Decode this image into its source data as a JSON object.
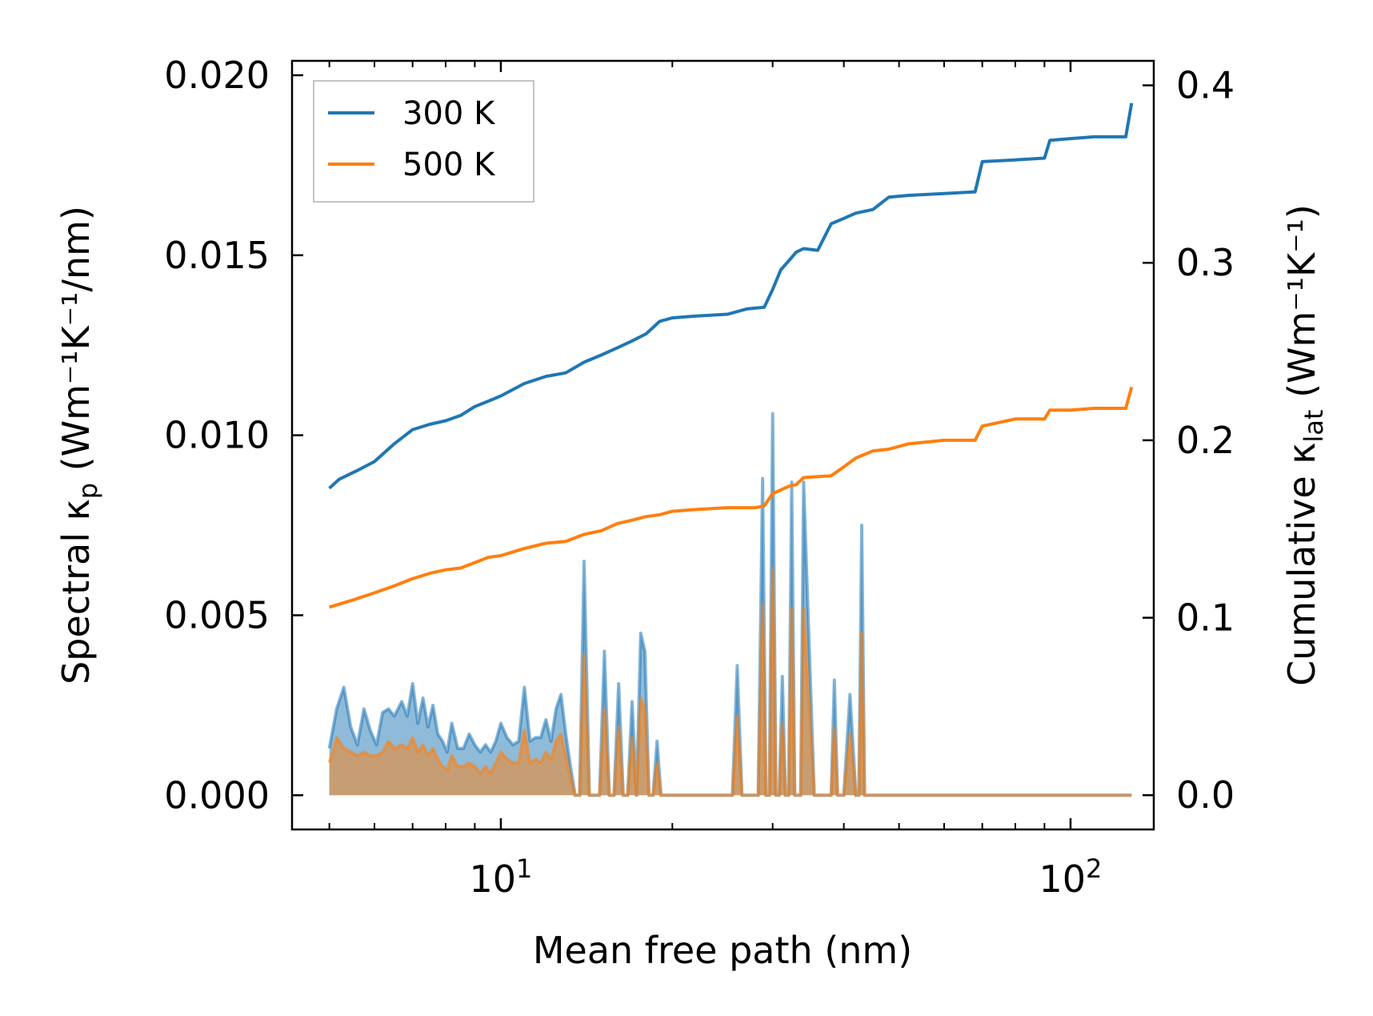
{
  "chart_data": {
    "type": "line",
    "xscale": "log",
    "xlabel": "Mean free path (nm)",
    "ylabel_left": {
      "base": "Spectral κ",
      "sub": "p",
      "unit": "(Wm⁻¹K⁻¹/nm)"
    },
    "ylabel_right": {
      "base": "Cumulative κ",
      "sub": "lat",
      "unit": "(Wm⁻¹K⁻¹)"
    },
    "xlim": [
      4.3,
      140
    ],
    "ylim_left": [
      -0.00095,
      0.0204
    ],
    "ylim_right": [
      -0.0193,
      0.4138
    ],
    "xticks": [
      {
        "value": 10,
        "base": "10",
        "exp": "1"
      },
      {
        "value": 100,
        "base": "10",
        "exp": "2"
      }
    ],
    "yticks_left": [
      {
        "value": 0.0,
        "label": "0.000"
      },
      {
        "value": 0.005,
        "label": "0.005"
      },
      {
        "value": 0.01,
        "label": "0.010"
      },
      {
        "value": 0.015,
        "label": "0.015"
      },
      {
        "value": 0.02,
        "label": "0.020"
      }
    ],
    "yticks_right": [
      {
        "value": 0.0,
        "label": "0.0"
      },
      {
        "value": 0.1,
        "label": "0.1"
      },
      {
        "value": 0.2,
        "label": "0.2"
      },
      {
        "value": 0.3,
        "label": "0.3"
      },
      {
        "value": 0.4,
        "label": "0.4"
      }
    ],
    "legend": {
      "position": "top-left",
      "entries": [
        "300 K",
        "500 K"
      ]
    },
    "colors": {
      "300 K": "#1f77b4",
      "500 K": "#ff7f0e"
    },
    "series": [
      {
        "name": "300 K",
        "axis": "right",
        "kind": "cumulative",
        "x": [
          5.0,
          5.2,
          5.6,
          6.0,
          6.5,
          7.0,
          7.5,
          8.0,
          8.5,
          9.0,
          9.5,
          10.0,
          11.0,
          12.0,
          13.0,
          14.0,
          15.0,
          16.0,
          17.0,
          18.0,
          19.0,
          20.0,
          22.0,
          25.0,
          27.0,
          29.0,
          30.0,
          31.0,
          32.0,
          33.0,
          34.0,
          36.0,
          38.0,
          40.0,
          42.0,
          45.0,
          48.0,
          52.0,
          60.0,
          68.0,
          70.0,
          80.0,
          90.0,
          92.0,
          100.0,
          110.0,
          125.0,
          128.0
        ],
        "y": [
          0.173,
          0.178,
          0.183,
          0.188,
          0.198,
          0.206,
          0.209,
          0.211,
          0.214,
          0.219,
          0.222,
          0.225,
          0.232,
          0.236,
          0.238,
          0.244,
          0.248,
          0.252,
          0.256,
          0.26,
          0.267,
          0.269,
          0.27,
          0.271,
          0.274,
          0.275,
          0.285,
          0.296,
          0.301,
          0.306,
          0.308,
          0.307,
          0.322,
          0.325,
          0.328,
          0.33,
          0.337,
          0.338,
          0.339,
          0.34,
          0.357,
          0.358,
          0.359,
          0.369,
          0.37,
          0.371,
          0.371,
          0.39
        ]
      },
      {
        "name": "500 K",
        "axis": "right",
        "kind": "cumulative",
        "x": [
          5.0,
          5.5,
          6.0,
          6.5,
          7.0,
          7.5,
          8.0,
          8.5,
          9.0,
          9.5,
          10.0,
          11.0,
          12.0,
          13.0,
          14.0,
          15.0,
          16.0,
          17.0,
          18.0,
          19.0,
          20.0,
          22.0,
          25.0,
          28.0,
          29.0,
          30.0,
          31.0,
          32.0,
          33.0,
          34.0,
          38.0,
          40.0,
          42.0,
          45.0,
          48.0,
          52.0,
          60.0,
          68.0,
          70.0,
          80.0,
          90.0,
          92.0,
          100.0,
          110.0,
          125.0,
          128.0
        ],
        "y": [
          0.106,
          0.11,
          0.114,
          0.118,
          0.122,
          0.125,
          0.127,
          0.128,
          0.131,
          0.134,
          0.135,
          0.139,
          0.142,
          0.143,
          0.147,
          0.149,
          0.153,
          0.155,
          0.157,
          0.158,
          0.16,
          0.161,
          0.162,
          0.162,
          0.163,
          0.17,
          0.172,
          0.174,
          0.175,
          0.179,
          0.18,
          0.185,
          0.19,
          0.194,
          0.195,
          0.198,
          0.2,
          0.2,
          0.208,
          0.212,
          0.212,
          0.217,
          0.217,
          0.218,
          0.218,
          0.23
        ]
      },
      {
        "name": "300 K",
        "axis": "left",
        "kind": "spectral",
        "x": [
          5.0,
          5.15,
          5.3,
          5.45,
          5.6,
          5.75,
          5.9,
          6.05,
          6.2,
          6.35,
          6.5,
          6.7,
          6.85,
          7.0,
          7.15,
          7.3,
          7.45,
          7.6,
          7.75,
          7.9,
          8.05,
          8.2,
          8.4,
          8.6,
          8.8,
          9.0,
          9.2,
          9.4,
          9.6,
          9.8,
          10.0,
          10.25,
          10.5,
          10.75,
          11.0,
          11.25,
          11.5,
          11.75,
          12.0,
          12.25,
          12.5,
          12.75,
          13.0,
          13.25,
          13.5,
          13.75,
          14.0,
          14.3,
          14.6,
          14.9,
          15.2,
          15.5,
          15.8,
          16.1,
          16.4,
          16.7,
          17.0,
          17.3,
          17.6,
          17.9,
          18.2,
          18.5,
          18.8,
          19.1,
          19.4,
          19.7,
          20.0,
          20.5,
          21.0,
          21.5,
          22.0,
          24.0,
          25.5,
          26.0,
          26.5,
          27.5,
          28.3,
          28.8,
          29.2,
          29.6,
          30.0,
          30.4,
          30.8,
          31.2,
          31.6,
          32.0,
          32.4,
          32.8,
          33.2,
          33.6,
          34.0,
          34.4,
          35.5,
          36.5,
          37.5,
          38.0,
          38.5,
          39.0,
          40.0,
          41.0,
          42.0,
          42.5,
          43.0,
          43.5,
          44.5,
          45.0,
          45.5,
          46.0,
          47.0,
          48.0,
          48.5,
          49.0,
          49.5,
          50.0,
          66.0,
          67.5,
          68.0,
          68.5,
          70.0,
          88.0,
          89.0,
          90.0,
          92.0,
          125.0,
          126.0,
          127.0,
          128.0
        ],
        "y": [
          0.0013,
          0.0024,
          0.003,
          0.0019,
          0.0014,
          0.0024,
          0.0018,
          0.0014,
          0.0023,
          0.0024,
          0.0022,
          0.0026,
          0.0022,
          0.0031,
          0.002,
          0.0027,
          0.0019,
          0.0025,
          0.0017,
          0.0015,
          0.0012,
          0.002,
          0.0013,
          0.0013,
          0.0017,
          0.0014,
          0.0012,
          0.0014,
          0.0012,
          0.0015,
          0.002,
          0.0016,
          0.0014,
          0.0015,
          0.003,
          0.0015,
          0.0016,
          0.0016,
          0.0021,
          0.0015,
          0.0024,
          0.0028,
          0.0017,
          0.0008,
          0.0,
          0.0,
          0.0065,
          0.0,
          0.0,
          0.0,
          0.004,
          0.0,
          0.0,
          0.0031,
          0.0,
          0.0,
          0.0026,
          0.0,
          0.0045,
          0.004,
          0.0,
          0.0,
          0.0015,
          0.0,
          0.0,
          0.0,
          0.0,
          0.0,
          0.0,
          0.0,
          0.0,
          0.0,
          0.0,
          0.0036,
          0.0,
          0.0,
          0.0,
          0.0088,
          0.0,
          0.0,
          0.0106,
          0.0,
          0.0,
          0.0033,
          0.0,
          0.0,
          0.0087,
          0.0,
          0.0,
          0.0,
          0.0087,
          0.0063,
          0.0,
          0.0,
          0.0,
          0.0,
          0.0032,
          0.0,
          0.0,
          0.0028,
          0.0,
          0.0,
          0.0075,
          0.0,
          0.0,
          0.0,
          0.0,
          0.0,
          0.0,
          0.0,
          0.0,
          0.0,
          0.0,
          0.0,
          0.0,
          0.0,
          0.0,
          0.0,
          0.0,
          0.0,
          0.0,
          0.0,
          0.0,
          0.0,
          0.0,
          0.0,
          0.0
        ]
      },
      {
        "name": "500 K",
        "axis": "left",
        "kind": "spectral",
        "x": [
          5.0,
          5.15,
          5.3,
          5.45,
          5.6,
          5.75,
          5.9,
          6.05,
          6.2,
          6.35,
          6.5,
          6.7,
          6.85,
          7.0,
          7.15,
          7.3,
          7.45,
          7.6,
          7.75,
          7.9,
          8.05,
          8.2,
          8.4,
          8.6,
          8.8,
          9.0,
          9.2,
          9.4,
          9.6,
          9.8,
          10.0,
          10.25,
          10.5,
          10.75,
          11.0,
          11.25,
          11.5,
          11.75,
          12.0,
          12.25,
          12.5,
          12.75,
          13.0,
          13.25,
          13.5,
          13.75,
          14.0,
          14.3,
          14.6,
          14.9,
          15.2,
          15.5,
          15.8,
          16.1,
          16.4,
          16.7,
          17.0,
          17.3,
          17.6,
          17.9,
          18.2,
          18.5,
          18.8,
          19.1,
          19.4,
          19.7,
          20.0,
          20.5,
          21.0,
          21.5,
          22.0,
          24.0,
          25.5,
          26.0,
          26.5,
          27.5,
          28.3,
          28.8,
          29.2,
          29.6,
          30.0,
          30.4,
          30.8,
          31.2,
          31.6,
          32.0,
          32.4,
          32.8,
          33.2,
          33.6,
          34.0,
          34.4,
          35.5,
          36.5,
          37.5,
          38.0,
          38.5,
          39.0,
          40.0,
          41.0,
          42.0,
          42.5,
          43.0,
          43.5,
          44.5,
          45.0,
          45.5,
          46.0,
          47.0,
          48.0,
          48.5,
          49.0,
          49.5,
          50.0,
          66.0,
          67.5,
          68.0,
          68.5,
          70.0,
          88.0,
          89.0,
          90.0,
          92.0,
          125.0,
          126.0,
          127.0,
          128.0
        ],
        "y": [
          0.0009,
          0.0016,
          0.0013,
          0.0012,
          0.0011,
          0.0012,
          0.0011,
          0.0011,
          0.0012,
          0.0015,
          0.0013,
          0.0014,
          0.0013,
          0.0016,
          0.0012,
          0.0014,
          0.0011,
          0.0013,
          0.001,
          0.0008,
          0.0007,
          0.0011,
          0.0008,
          0.0008,
          0.0009,
          0.0008,
          0.0006,
          0.0008,
          0.0006,
          0.0009,
          0.0012,
          0.001,
          0.0009,
          0.0009,
          0.0018,
          0.0009,
          0.001,
          0.0009,
          0.0012,
          0.001,
          0.0015,
          0.0017,
          0.0011,
          0.0005,
          0.0,
          0.0,
          0.0039,
          0.0,
          0.0,
          0.0,
          0.0024,
          0.0,
          0.0,
          0.0019,
          0.0,
          0.0,
          0.0016,
          0.0,
          0.0027,
          0.0024,
          0.0,
          0.0,
          0.0009,
          0.0,
          0.0,
          0.0,
          0.0,
          0.0,
          0.0,
          0.0,
          0.0,
          0.0,
          0.0,
          0.0022,
          0.0,
          0.0,
          0.0,
          0.0053,
          0.0,
          0.0,
          0.0063,
          0.0,
          0.0,
          0.002,
          0.0,
          0.0,
          0.0052,
          0.0,
          0.0,
          0.0,
          0.0052,
          0.0038,
          0.0,
          0.0,
          0.0,
          0.0,
          0.0019,
          0.0,
          0.0,
          0.0017,
          0.0,
          0.0,
          0.0045,
          0.0,
          0.0,
          0.0,
          0.0,
          0.0,
          0.0,
          0.0,
          0.0,
          0.0,
          0.0,
          0.0,
          0.0,
          0.0,
          0.0,
          0.0,
          0.0,
          0.0,
          0.0,
          0.0,
          0.0,
          0.0,
          0.0,
          0.0,
          0.0
        ]
      }
    ]
  }
}
